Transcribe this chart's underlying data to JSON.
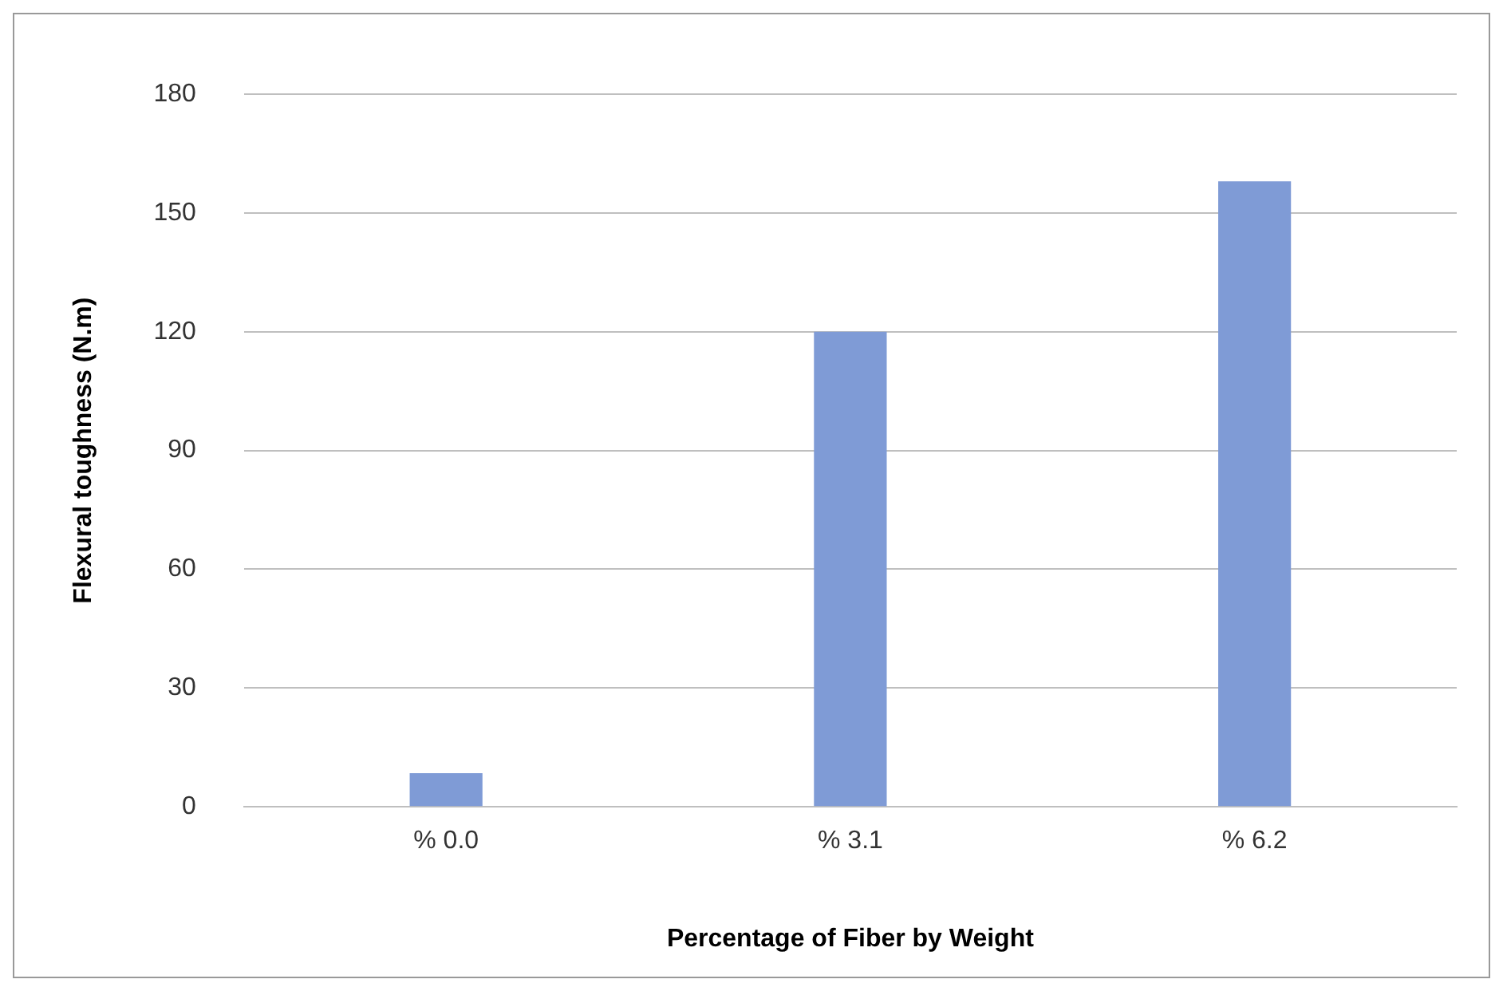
{
  "chart_data": {
    "type": "bar",
    "xlabel": "Percentage of Fiber by Weight",
    "ylabel": "Flexural toughness (N.m)",
    "categories": [
      "% 0.0",
      "% 3.1",
      "% 6.2"
    ],
    "values": [
      8.5,
      120,
      158
    ],
    "color": "#7f9bd6",
    "ylim": [
      0,
      180
    ],
    "yticks": [
      0,
      30,
      60,
      90,
      120,
      150,
      180
    ],
    "grid": "y"
  }
}
